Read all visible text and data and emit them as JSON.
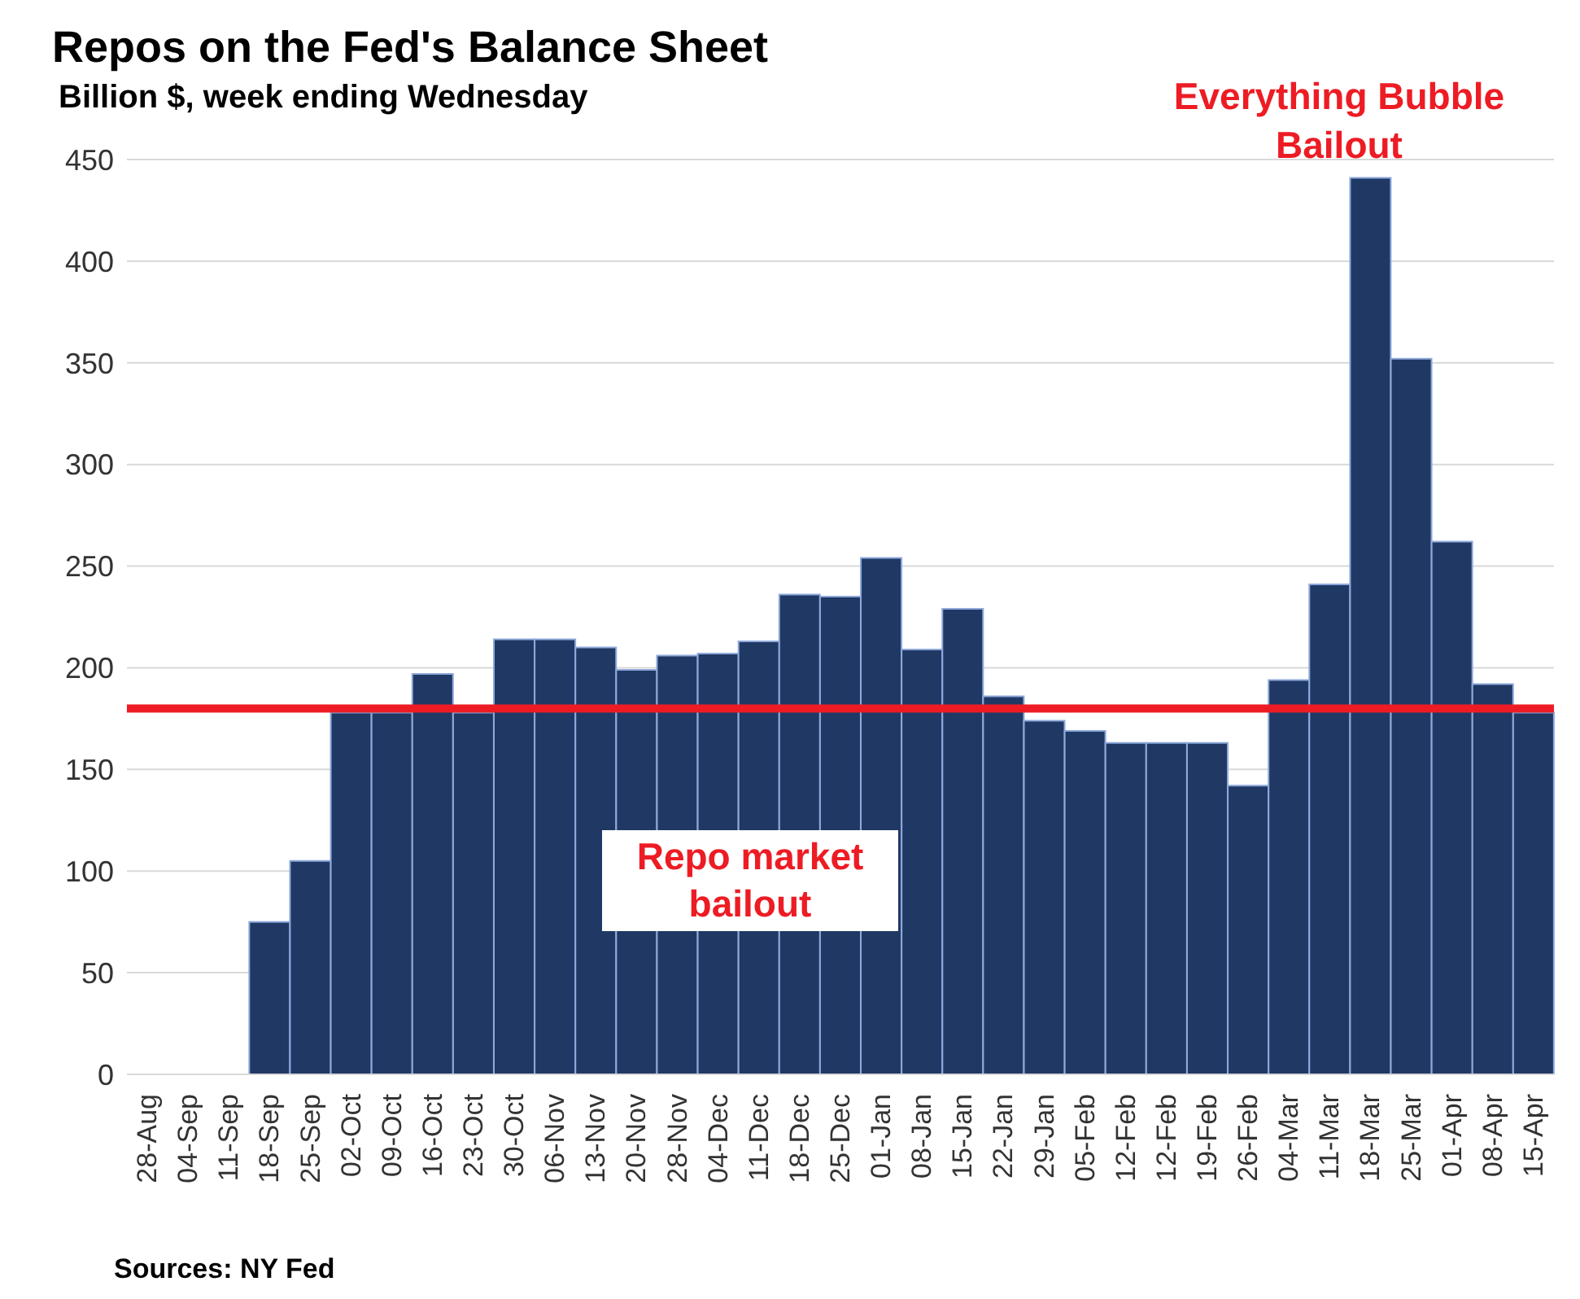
{
  "chart_data": {
    "type": "bar",
    "title": "Repos on the Fed's Balance Sheet",
    "subtitle": "Billion $, week ending Wednesday",
    "categories": [
      "28-Aug",
      "04-Sep",
      "11-Sep",
      "18-Sep",
      "25-Sep",
      "02-Oct",
      "09-Oct",
      "16-Oct",
      "23-Oct",
      "30-Oct",
      "06-Nov",
      "13-Nov",
      "20-Nov",
      "28-Nov",
      "04-Dec",
      "11-Dec",
      "18-Dec",
      "25-Dec",
      "01-Jan",
      "08-Jan",
      "15-Jan",
      "22-Jan",
      "29-Jan",
      "05-Feb",
      "12-Feb",
      "12-Feb",
      "19-Feb",
      "26-Feb",
      "04-Mar",
      "11-Mar",
      "18-Mar",
      "25-Mar",
      "01-Apr",
      "08-Apr",
      "15-Apr"
    ],
    "values": [
      0,
      0,
      0,
      75,
      105,
      178,
      178,
      197,
      178,
      214,
      214,
      210,
      199,
      206,
      207,
      213,
      236,
      235,
      254,
      209,
      229,
      186,
      174,
      169,
      163,
      163,
      163,
      142,
      194,
      241,
      441,
      352,
      262,
      192,
      178
    ],
    "color": "#203864",
    "ylim": [
      0,
      450
    ],
    "yticks": [
      0,
      50,
      100,
      150,
      200,
      250,
      300,
      350,
      400,
      450
    ],
    "grid": "y",
    "ref_lines": [
      {
        "axis": "y",
        "value": 180,
        "color": "#ed1c24"
      }
    ],
    "annotations": [
      "Repo market bailout",
      "Everything Bubble Bailout",
      "Sources: NY Fed"
    ]
  }
}
